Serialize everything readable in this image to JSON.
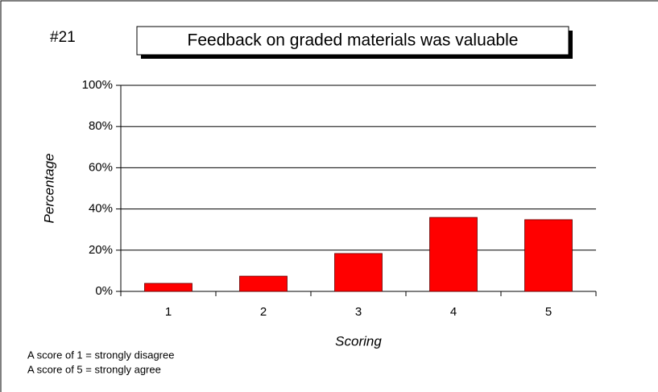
{
  "chart_data": {
    "type": "bar",
    "title": "Feedback on graded materials was valuable",
    "annotation": "#21",
    "xlabel": "Scoring",
    "ylabel": "Percentage",
    "notes": [
      "A score of 1 = strongly disagree",
      "A score of 5 = strongly agree"
    ],
    "categories": [
      "1",
      "2",
      "3",
      "4",
      "5"
    ],
    "values": [
      3.9,
      7.4,
      18.4,
      35.9,
      34.8
    ],
    "color": "#ff0000",
    "ylim": [
      0,
      100
    ],
    "yticks": [
      {
        "value": 0,
        "label": "0%"
      },
      {
        "value": 20,
        "label": "20%"
      },
      {
        "value": 40,
        "label": "40%"
      },
      {
        "value": 60,
        "label": "60%"
      },
      {
        "value": 80,
        "label": "80%"
      },
      {
        "value": 100,
        "label": "100%"
      }
    ],
    "grid": true
  }
}
